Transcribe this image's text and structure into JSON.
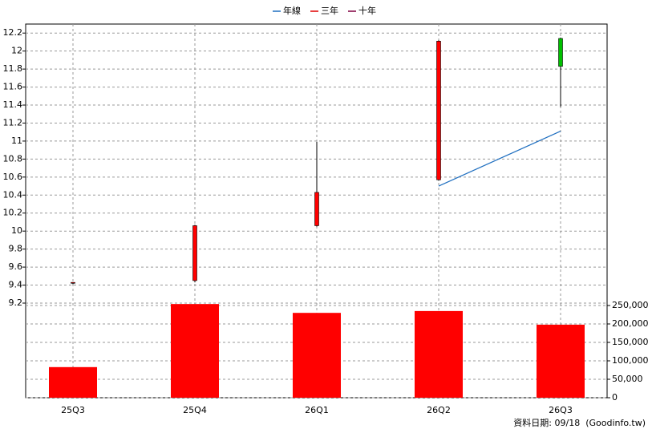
{
  "chart_data": [
    {
      "type": "candlestick",
      "categories": [
        "25Q3",
        "25Q4",
        "26Q1",
        "26Q2",
        "26Q3"
      ],
      "open": [
        9.42,
        9.45,
        10.06,
        10.57,
        12.14
      ],
      "high": [
        9.43,
        10.07,
        10.99,
        12.12,
        12.15
      ],
      "low": [
        9.41,
        9.43,
        10.05,
        10.56,
        11.38
      ],
      "close": [
        9.43,
        10.06,
        10.43,
        12.11,
        11.83
      ],
      "up_color": "#ff0000",
      "down_color": "#00c000",
      "series": [
        {
          "name": "年線",
          "color": "#1f6fc0",
          "values": [
            null,
            null,
            null,
            10.5,
            11.11
          ]
        },
        {
          "name": "三年",
          "color": "#e00000",
          "values": [
            null,
            null,
            null,
            null,
            null
          ]
        },
        {
          "name": "十年",
          "color": "#800040",
          "values": [
            null,
            null,
            null,
            null,
            null
          ]
        }
      ],
      "ylim": [
        9.2,
        12.3
      ],
      "yticks": [
        9.2,
        9.4,
        9.6,
        9.8,
        10,
        10.2,
        10.4,
        10.6,
        10.8,
        11,
        11.2,
        11.4,
        11.6,
        11.8,
        12,
        12.2
      ],
      "grid": true
    },
    {
      "type": "bar",
      "color": "#ff0000",
      "values": [
        83000,
        254000,
        230000,
        235000,
        198000
      ],
      "ylim": [
        0,
        256500
      ],
      "yticks": [
        0,
        {
          "value": 50000,
          "label": "50,000"
        },
        {
          "value": 100000,
          "label": "100,000"
        },
        {
          "value": 150000,
          "label": "150,000"
        },
        {
          "value": 200000,
          "label": "200,000"
        },
        {
          "value": 250000,
          "label": "250,000"
        }
      ],
      "grid": true
    }
  ],
  "footer": "資料日期: 09/18  (Goodinfo.tw)"
}
